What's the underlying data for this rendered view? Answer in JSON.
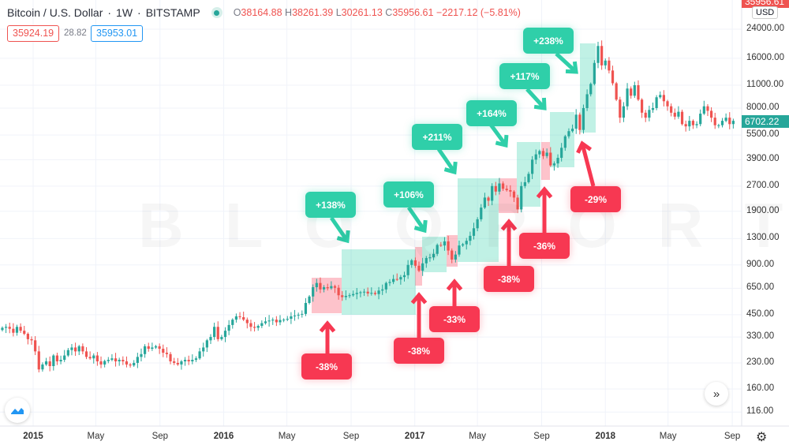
{
  "header": {
    "symbol": "Bitcoin / U.S. Dollar",
    "interval": "1W",
    "exchange": "BITSTAMP",
    "open_label": "O",
    "open": "38164.88",
    "high_label": "H",
    "high": "38261.39",
    "low_label": "L",
    "low": "30261.13",
    "close_label": "C",
    "close": "35956.61",
    "change": "−2217.12 (−5.81%)",
    "bid": "35924.19",
    "spread": "28.82",
    "ask": "35953.01"
  },
  "price_scale": {
    "currency": "USD",
    "top_price": "35956.61",
    "last_price": "6702.22"
  },
  "watermark": "BLOQPORT",
  "colors": {
    "up": "#26a69a",
    "down": "#ef5350",
    "gain_annotation": "#2fcfa9",
    "loss_annotation": "#f73852"
  },
  "chart_data": {
    "type": "candlestick",
    "scale": "log",
    "ylim": [
      100,
      30000
    ],
    "grid": true,
    "interval": "1W",
    "first_week": "2014-11-03",
    "y_ticks": [
      "24000.00",
      "16000.00",
      "11000.00",
      "8000.00",
      "5500.00",
      "3900.00",
      "2700.00",
      "1900.00",
      "1300.00",
      "900.00",
      "650.00",
      "450.00",
      "330.00",
      "230.00",
      "160.00",
      "116.00"
    ],
    "x_ticks": [
      {
        "label": "2015",
        "year": true
      },
      {
        "label": "May"
      },
      {
        "label": "Sep"
      },
      {
        "label": "2016",
        "year": true
      },
      {
        "label": "May"
      },
      {
        "label": "Sep"
      },
      {
        "label": "2017",
        "year": true
      },
      {
        "label": "May"
      },
      {
        "label": "Sep"
      },
      {
        "label": "2018",
        "year": true
      },
      {
        "label": "May"
      },
      {
        "label": "Sep"
      }
    ],
    "weekly_closes": [
      375,
      380,
      370,
      350,
      380,
      360,
      345,
      320,
      315,
      270,
      210,
      225,
      235,
      220,
      255,
      235,
      240,
      255,
      275,
      285,
      270,
      290,
      270,
      250,
      245,
      255,
      235,
      225,
      236,
      240,
      245,
      235,
      240,
      235,
      225,
      222,
      230,
      250,
      260,
      290,
      280,
      285,
      290,
      280,
      265,
      260,
      235,
      230,
      225,
      235,
      240,
      235,
      240,
      245,
      270,
      285,
      315,
      330,
      380,
      320,
      330,
      360,
      390,
      420,
      440,
      435,
      420,
      400,
      380,
      375,
      385,
      400,
      410,
      415,
      420,
      405,
      418,
      420,
      425,
      440,
      445,
      450,
      455,
      530,
      580,
      660,
      700,
      640,
      660,
      650,
      670,
      655,
      590,
      575,
      585,
      590,
      600,
      610,
      615,
      620,
      605,
      610,
      600,
      630,
      640,
      700,
      710,
      740,
      735,
      760,
      780,
      900,
      960,
      890,
      830,
      920,
      990,
      1000,
      1050,
      1190,
      1180,
      1250,
      1100,
      970,
      1040,
      1180,
      1200,
      1260,
      1350,
      1500,
      1700,
      2000,
      2300,
      2200,
      2700,
      2500,
      2800,
      2600,
      2550,
      2500,
      2300,
      1950,
      2700,
      2850,
      3200,
      3900,
      4200,
      4400,
      4100,
      4300,
      3600,
      3700,
      4000,
      4600,
      5400,
      5800,
      6000,
      7300,
      5900,
      8000,
      9700,
      11200,
      15000,
      19000,
      14500,
      15500,
      13500,
      11300,
      9000,
      7000,
      8200,
      10500,
      9500,
      11000,
      9000,
      7500,
      7000,
      7800,
      8000,
      9300,
      9600,
      8800,
      8200,
      7500,
      7100,
      7600,
      6400,
      6200,
      6700,
      6300,
      6400,
      7400,
      8200,
      7700,
      7000,
      6300,
      6300,
      6700,
      7000,
      6400,
      6700
    ],
    "annotations": {
      "gains": [
        "+138%",
        "+106%",
        "+211%",
        "+164%",
        "+117%",
        "+238%"
      ],
      "drawdowns": [
        "-38%",
        "-38%",
        "-33%",
        "-38%",
        "-36%",
        "-29%"
      ]
    }
  }
}
